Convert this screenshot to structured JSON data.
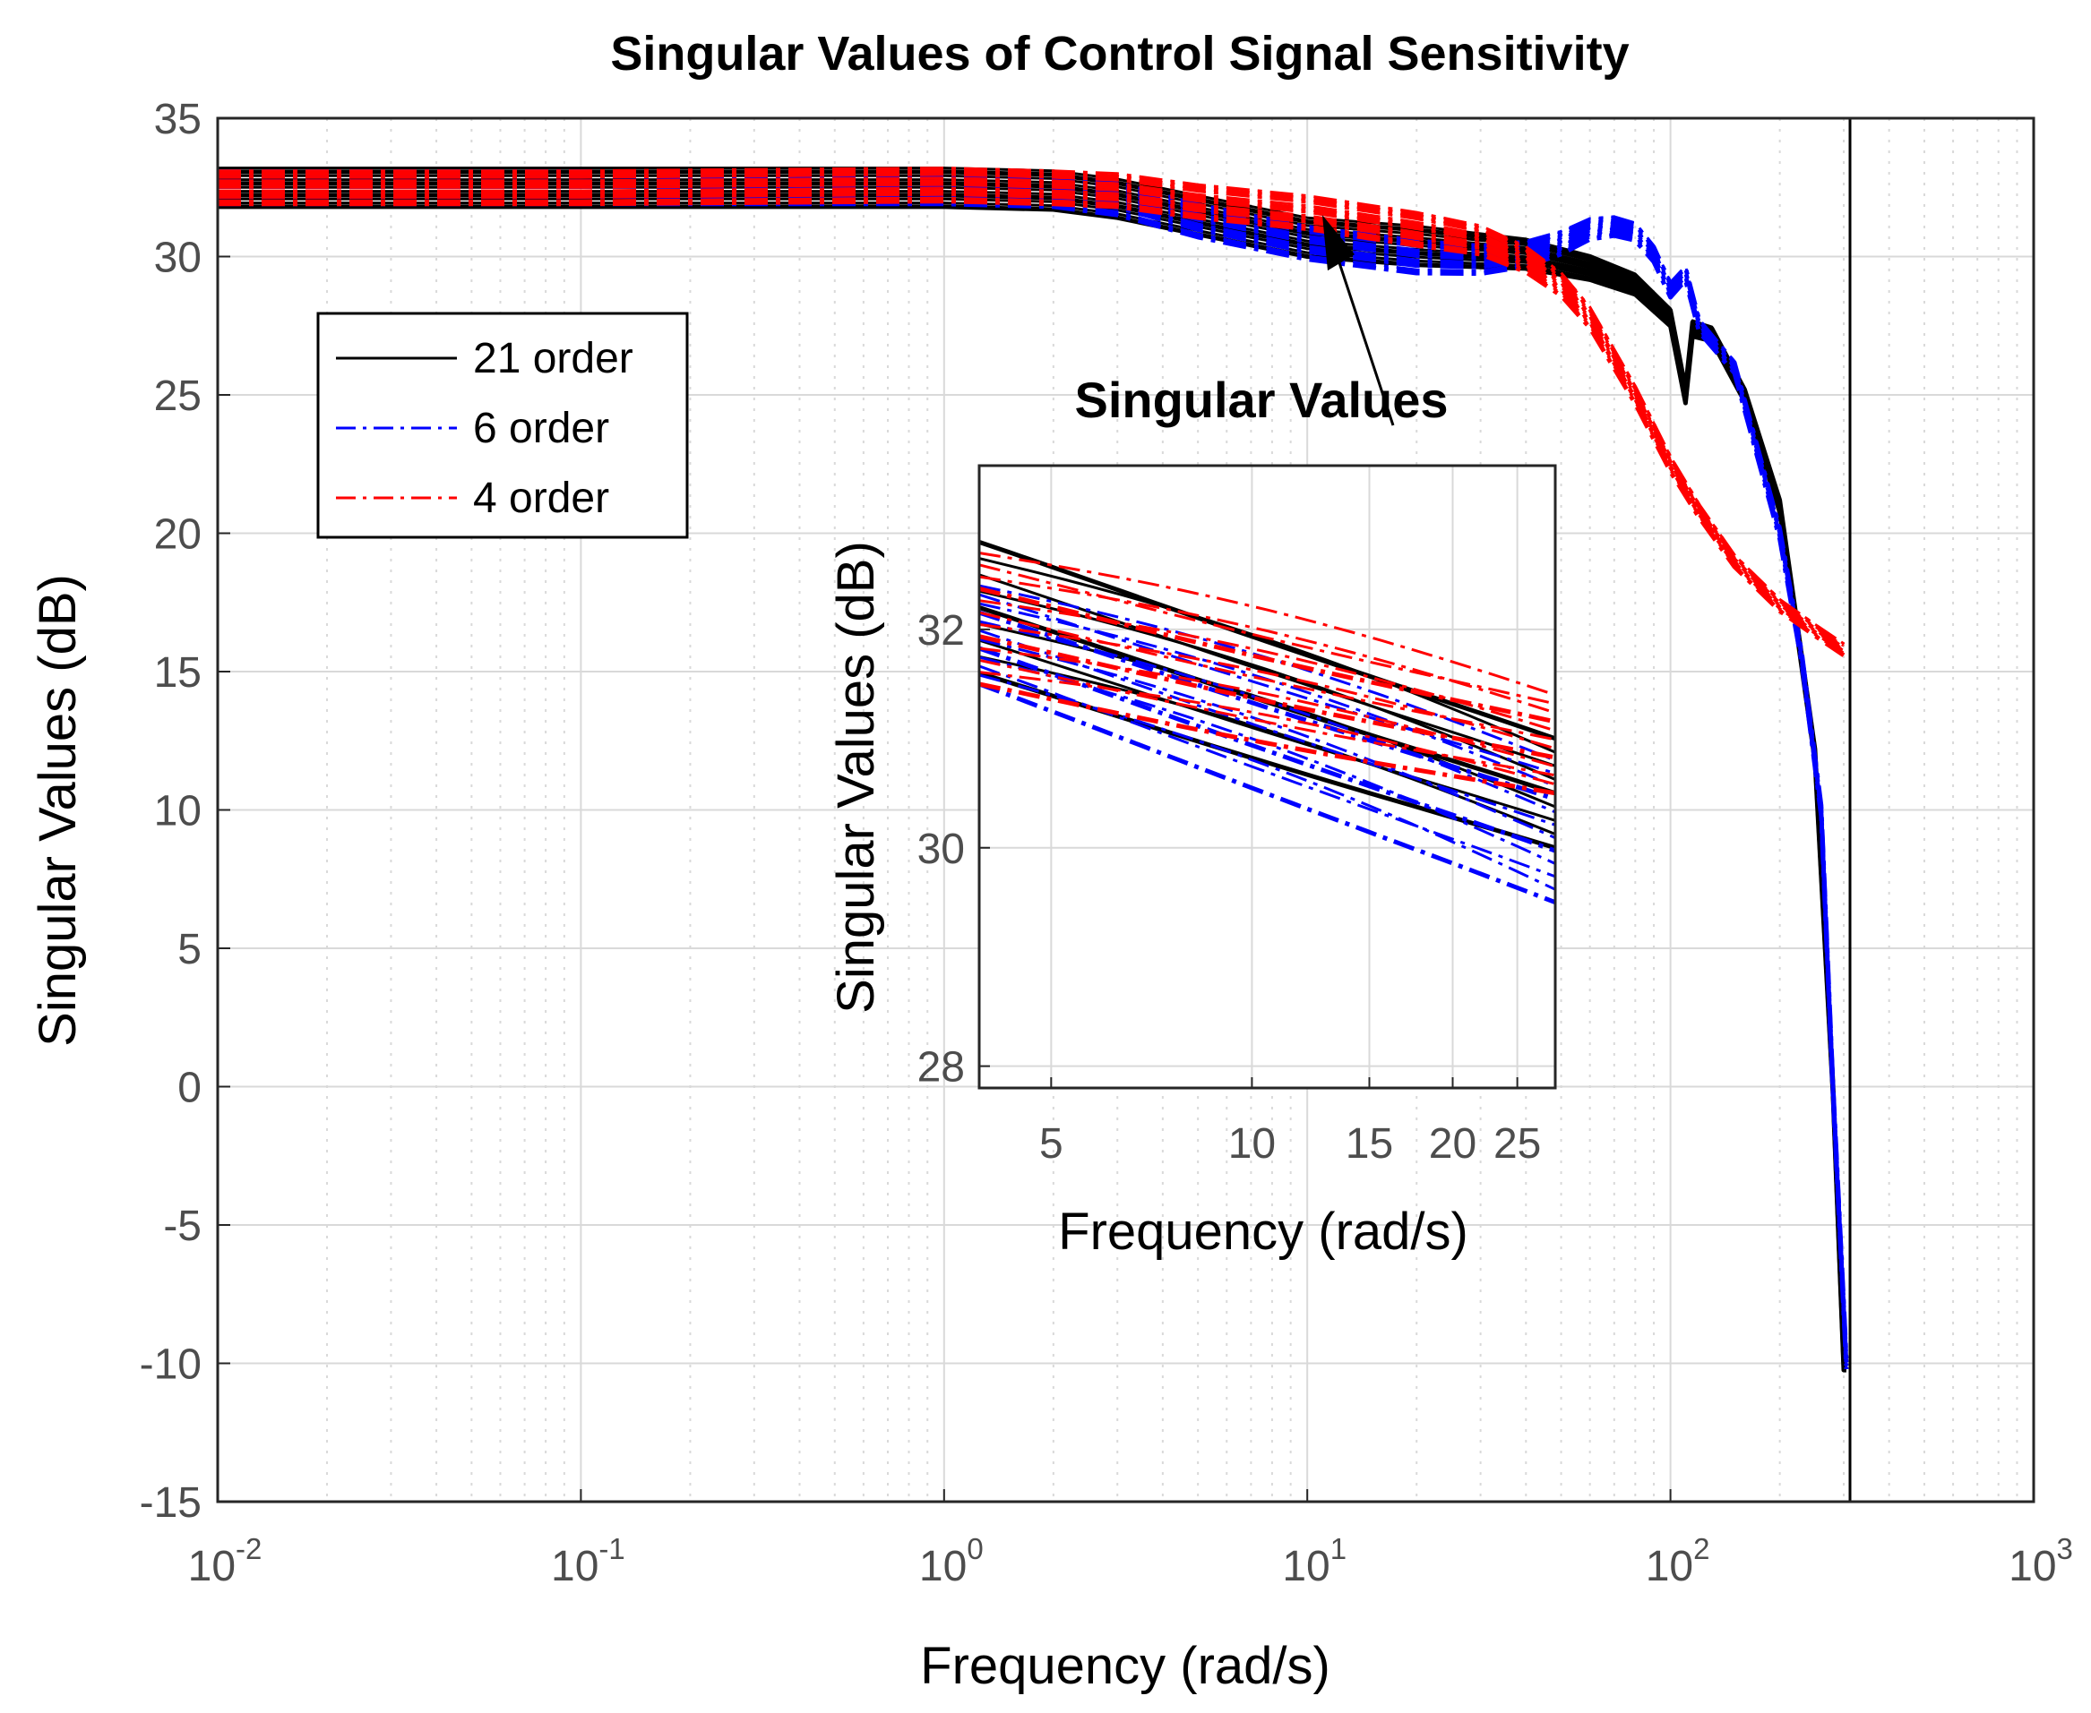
{
  "chart_data": [
    {
      "type": "line",
      "title": "Singular Values of Control Signal Sensitivity",
      "xlabel": "Frequency (rad/s)",
      "ylabel": "Singular Values (dB)",
      "xscale": "log",
      "xlim": [
        0.01,
        1000
      ],
      "ylim": [
        -15,
        35
      ],
      "grid": true,
      "x_tick_labels": [
        {
          "base": "10",
          "exp": "-2"
        },
        {
          "base": "10",
          "exp": "-1"
        },
        {
          "base": "10",
          "exp": "0"
        },
        {
          "base": "10",
          "exp": "1"
        },
        {
          "base": "10",
          "exp": "2"
        },
        {
          "base": "10",
          "exp": "3"
        }
      ],
      "y_ticks": [
        "35",
        "30",
        "25",
        "20",
        "15",
        "10",
        "5",
        "0",
        "-5",
        "-10",
        "-15"
      ],
      "legend_position": "top-left",
      "legend": [
        "21 order",
        "6 order",
        "4 order"
      ],
      "series": [
        {
          "name": "21 order",
          "color": "#000000",
          "style": "solid",
          "x": [
            0.01,
            0.1,
            1,
            2,
            3,
            5,
            10,
            20,
            40,
            60,
            80,
            100,
            110,
            115,
            130,
            160,
            200,
            250,
            280,
            300,
            305
          ],
          "y": [
            32.5,
            32.5,
            32.5,
            32.4,
            32.1,
            31.5,
            30.7,
            30.4,
            30.1,
            29.6,
            29.0,
            27.8,
            25.0,
            27.4,
            27.2,
            25.0,
            21.0,
            12.0,
            0,
            -10,
            -10
          ],
          "spread": 0.7
        },
        {
          "name": "6 order",
          "color": "#0000ff",
          "style": "dashdot",
          "x": [
            0.01,
            0.1,
            1,
            2,
            3,
            5,
            10,
            20,
            30,
            40,
            50,
            60,
            70,
            80,
            90,
            100,
            110,
            120,
            150,
            200,
            230,
            260,
            280,
            300,
            305
          ],
          "y": [
            32.5,
            32.5,
            32.5,
            32.4,
            32.1,
            31.3,
            30.5,
            30.0,
            29.9,
            30.1,
            30.5,
            31.0,
            31.1,
            30.9,
            30.1,
            28.8,
            29.4,
            27.5,
            26.0,
            20.0,
            15.5,
            10.0,
            0,
            -8,
            -10
          ],
          "spread": 0.6
        },
        {
          "name": "4 order",
          "color": "#ff0000",
          "style": "dashdot",
          "x": [
            0.01,
            0.1,
            1,
            2,
            3,
            5,
            10,
            20,
            30,
            40,
            50,
            60,
            80,
            100,
            120,
            150,
            200,
            250,
            300
          ],
          "y": [
            32.5,
            32.5,
            32.6,
            32.5,
            32.4,
            32.0,
            31.6,
            31.0,
            30.6,
            29.9,
            29.0,
            27.8,
            25.0,
            22.5,
            20.8,
            19.0,
            17.4,
            16.5,
            15.8
          ],
          "spread": 0.6
        }
      ],
      "annotation_arrow": {
        "from_label": "Singular Values",
        "to_x": 11,
        "to_y": 31.5
      }
    },
    {
      "type": "line",
      "role": "inset",
      "title": "Singular Values",
      "xlabel": "Frequency (rad/s)",
      "ylabel": "Singular Values (dB)",
      "xscale": "log",
      "xlim": [
        3.9,
        28.5
      ],
      "ylim": [
        27.8,
        33.5
      ],
      "x_ticks": [
        5,
        10,
        15,
        20,
        25
      ],
      "x_tick_labels": [
        "5",
        "10",
        "15",
        "20",
        "25"
      ],
      "y_ticks": [
        28,
        30,
        32
      ],
      "y_tick_labels": [
        "28",
        "30",
        "32"
      ],
      "series": [
        {
          "name": "21 order",
          "color": "#000000",
          "style": "solid",
          "x": [
            3.9,
            28.5
          ],
          "y_low": [
            31.6,
            30.0
          ],
          "y_high": [
            32.8,
            31.0
          ],
          "count": 9
        },
        {
          "name": "6 order",
          "color": "#0000ff",
          "style": "dashdot",
          "x": [
            3.9,
            28.5
          ],
          "y_low": [
            31.5,
            29.5
          ],
          "y_high": [
            32.4,
            30.8
          ],
          "count": 12
        },
        {
          "name": "4 order",
          "color": "#ff0000",
          "style": "dashdot",
          "x": [
            3.9,
            28.5
          ],
          "y_low": [
            31.5,
            30.5
          ],
          "y_high": [
            32.7,
            31.4
          ],
          "count": 12
        }
      ]
    }
  ]
}
